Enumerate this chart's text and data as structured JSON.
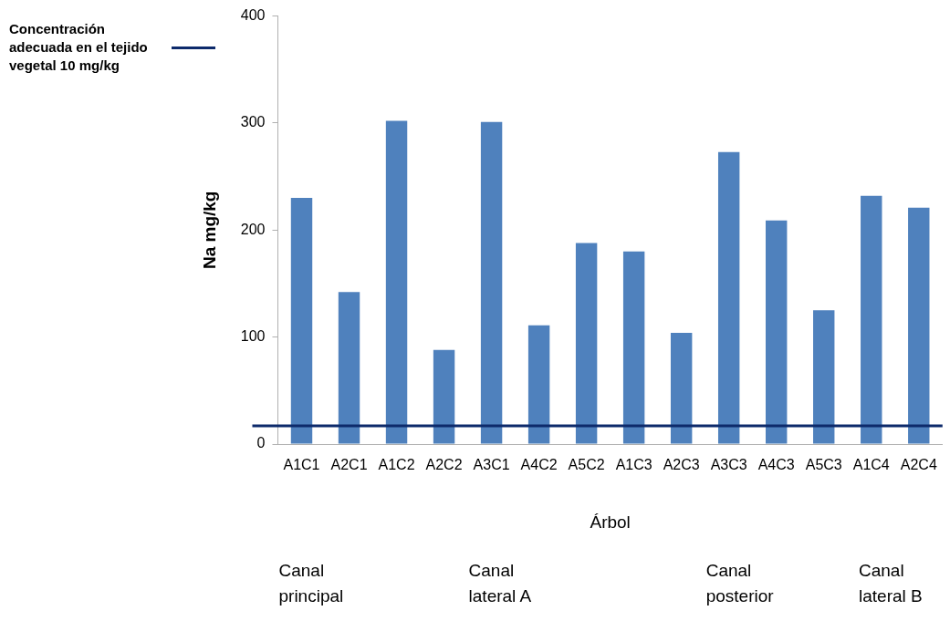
{
  "chart_data": {
    "type": "bar",
    "xlabel": "Árbol",
    "ylabel": "Na mg/kg",
    "categories": [
      "A1C1",
      "A2C1",
      "A1C2",
      "A2C2",
      "A3C1",
      "A4C2",
      "A5C2",
      "A1C3",
      "A2C3",
      "A3C3",
      "A4C3",
      "A5C3",
      "A1C4",
      "A2C4"
    ],
    "values": [
      230,
      142,
      302,
      88,
      301,
      111,
      188,
      180,
      104,
      273,
      209,
      125,
      232,
      221
    ],
    "color": "#4f81bd",
    "ylim": [
      0,
      400
    ],
    "yticks": [
      0,
      100,
      200,
      300,
      400
    ],
    "grid": false,
    "ref_lines": [
      {
        "axis": "y",
        "value": 17,
        "label": "Concentración adecuada en el tejido vegetal 10 mg/kg",
        "color": "#0d2a6b"
      }
    ],
    "legend": "top left",
    "annotations": [
      "Canal principal",
      "Canal lateral A",
      "Canal posterior",
      "Canal lateral B"
    ]
  }
}
